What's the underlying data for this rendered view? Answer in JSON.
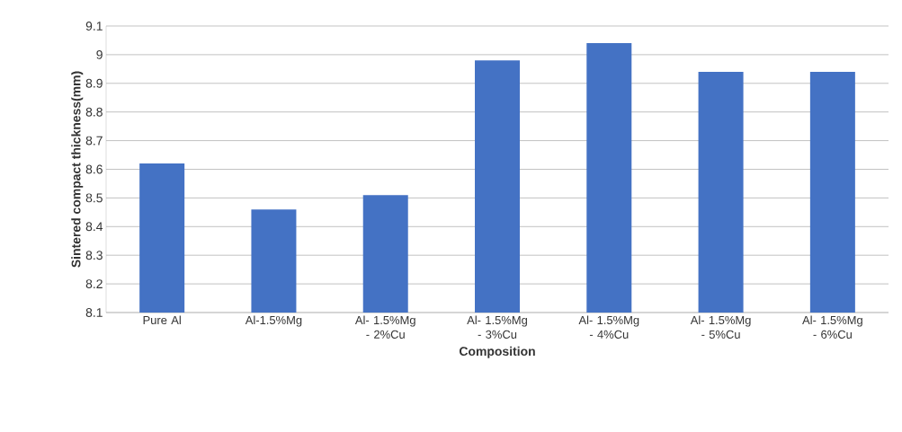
{
  "chart_data": {
    "type": "bar",
    "xlabel": "Composition",
    "ylabel": "Sintered compact thickness(mm)",
    "categories": [
      "Pure Al",
      "Al-1.5%Mg",
      "Al- 1.5%Mg - 2%Cu",
      "Al- 1.5%Mg - 3%Cu",
      "Al- 1.5%Mg - 4%Cu",
      "Al- 1.5%Mg - 5%Cu",
      "Al- 1.5%Mg - 6%Cu"
    ],
    "values": [
      8.62,
      8.46,
      8.51,
      8.98,
      9.04,
      8.94,
      8.94
    ],
    "color": "#4472c4",
    "ylim": [
      8.1,
      9.1
    ],
    "yticks": [
      8.1,
      8.2,
      8.3,
      8.4,
      8.5,
      8.6,
      8.7,
      8.8,
      8.9,
      9,
      9.1
    ],
    "grid": "y"
  }
}
